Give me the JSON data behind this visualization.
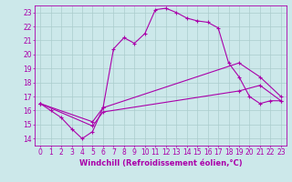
{
  "background_color": "#cce8ea",
  "grid_color": "#aacccc",
  "line_color": "#aa00aa",
  "xlim": [
    -0.5,
    23.5
  ],
  "ylim": [
    13.5,
    23.5
  ],
  "xticks": [
    0,
    1,
    2,
    3,
    4,
    5,
    6,
    7,
    8,
    9,
    10,
    11,
    12,
    13,
    14,
    15,
    16,
    17,
    18,
    19,
    20,
    21,
    22,
    23
  ],
  "yticks": [
    14,
    15,
    16,
    17,
    18,
    19,
    20,
    21,
    22,
    23
  ],
  "xlabel": "Windchill (Refroidissement éolien,°C)",
  "xlabel_fontsize": 6.0,
  "tick_fontsize": 5.5,
  "line1_x": [
    0,
    1,
    2,
    3,
    4,
    5,
    6,
    7,
    8,
    9,
    10,
    11,
    12,
    13,
    14,
    15,
    16,
    17,
    18,
    19,
    20,
    21,
    22,
    23
  ],
  "line1_y": [
    16.5,
    16.0,
    15.5,
    14.7,
    14.0,
    14.5,
    16.2,
    20.4,
    21.2,
    20.8,
    21.5,
    23.2,
    23.3,
    23.0,
    22.6,
    22.4,
    22.3,
    21.9,
    19.4,
    18.4,
    17.0,
    16.5,
    16.7,
    16.7
  ],
  "line2_x": [
    0,
    5,
    6,
    19,
    21,
    23
  ],
  "line2_y": [
    16.5,
    15.2,
    16.2,
    19.4,
    18.4,
    17.0
  ],
  "line3_x": [
    0,
    5,
    6,
    19,
    21,
    23
  ],
  "line3_y": [
    16.5,
    14.9,
    15.9,
    17.4,
    17.8,
    16.7
  ]
}
